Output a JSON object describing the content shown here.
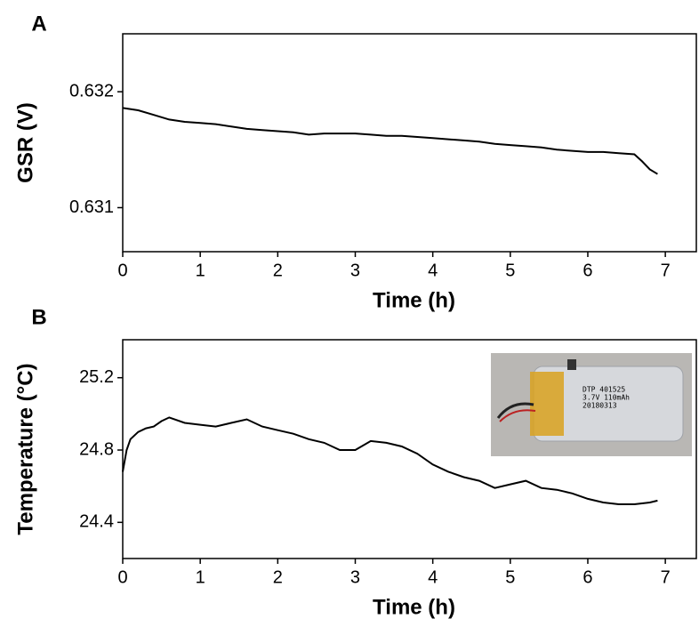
{
  "chart_data": [
    {
      "type": "line",
      "title": "A",
      "x_label": "Time (h)",
      "y_label": "GSR (V)",
      "xlim": [
        0,
        7.4
      ],
      "xticks": [
        0,
        1,
        2,
        3,
        4,
        5,
        6,
        7
      ],
      "ylim": [
        0.63062,
        0.6325
      ],
      "yticks": [
        0.631,
        0.632
      ],
      "series": [
        {
          "color": "#000000",
          "x": [
            0,
            0.2,
            0.4,
            0.6,
            0.8,
            1.0,
            1.2,
            1.4,
            1.6,
            1.8,
            2.0,
            2.2,
            2.4,
            2.6,
            2.8,
            3.0,
            3.2,
            3.4,
            3.6,
            3.8,
            4.0,
            4.2,
            4.4,
            4.6,
            4.8,
            5.0,
            5.2,
            5.4,
            5.6,
            5.8,
            6.0,
            6.2,
            6.4,
            6.6,
            6.7,
            6.8,
            6.9
          ],
          "values": [
            0.63186,
            0.63184,
            0.6318,
            0.63176,
            0.63174,
            0.63173,
            0.63172,
            0.6317,
            0.63168,
            0.63167,
            0.63166,
            0.63165,
            0.63163,
            0.63164,
            0.63164,
            0.63164,
            0.63163,
            0.63162,
            0.63162,
            0.63161,
            0.6316,
            0.63159,
            0.63158,
            0.63157,
            0.63155,
            0.63154,
            0.63153,
            0.63152,
            0.6315,
            0.63149,
            0.63148,
            0.63148,
            0.63147,
            0.63146,
            0.6314,
            0.63133,
            0.63129
          ]
        }
      ]
    },
    {
      "type": "line",
      "title": "B",
      "x_label": "Time (h)",
      "y_label": "Temperature (°C)",
      "xlim": [
        0,
        7.4
      ],
      "xticks": [
        0,
        1,
        2,
        3,
        4,
        5,
        6,
        7
      ],
      "ylim": [
        24.2,
        25.41
      ],
      "yticks": [
        24.4,
        24.8,
        25.2
      ],
      "annotations": [
        "DTP 401525",
        "3.7V 110mAh",
        "20180313"
      ],
      "series": [
        {
          "color": "#000000",
          "x": [
            0,
            0.05,
            0.1,
            0.2,
            0.3,
            0.4,
            0.5,
            0.6,
            0.8,
            1.0,
            1.2,
            1.4,
            1.6,
            1.8,
            2.0,
            2.2,
            2.4,
            2.6,
            2.8,
            3.0,
            3.2,
            3.4,
            3.6,
            3.8,
            4.0,
            4.2,
            4.4,
            4.6,
            4.8,
            5.0,
            5.2,
            5.4,
            5.6,
            5.8,
            6.0,
            6.2,
            6.4,
            6.6,
            6.8,
            6.9
          ],
          "values": [
            24.68,
            24.8,
            24.86,
            24.9,
            24.92,
            24.93,
            24.96,
            24.98,
            24.95,
            24.94,
            24.93,
            24.95,
            24.97,
            24.93,
            24.91,
            24.89,
            24.86,
            24.84,
            24.8,
            24.8,
            24.85,
            24.84,
            24.82,
            24.78,
            24.72,
            24.68,
            24.65,
            24.63,
            24.59,
            24.61,
            24.63,
            24.59,
            24.58,
            24.56,
            24.53,
            24.51,
            24.5,
            24.5,
            24.51,
            24.52
          ]
        }
      ]
    }
  ]
}
